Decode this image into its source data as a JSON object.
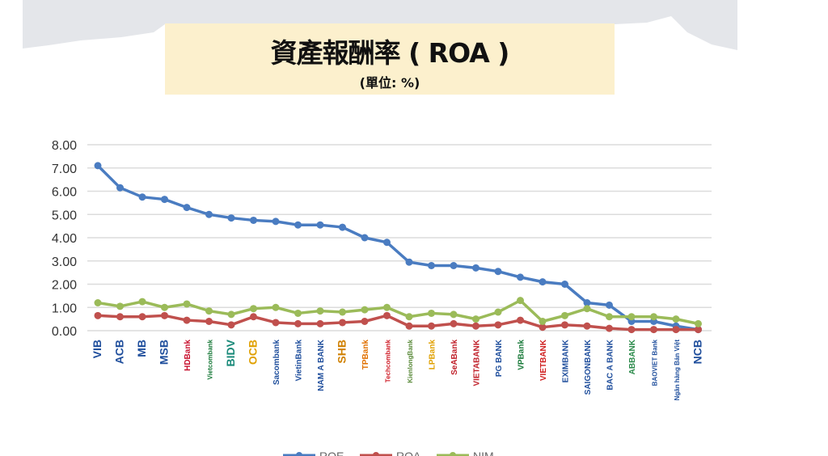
{
  "chart_data": {
    "type": "line",
    "title": "資產報酬率 ( ROA )",
    "subtitle": "(單位: %)",
    "ylim": [
      0,
      8
    ],
    "yticks": [
      "0.00",
      "1.00",
      "2.00",
      "3.00",
      "4.00",
      "5.00",
      "6.00",
      "7.00",
      "8.00"
    ],
    "grid": true,
    "legend_placement": "bottom",
    "categories": [
      "VIB",
      "ACB",
      "MB",
      "MSB",
      "HDBank",
      "Vietcombank",
      "BIDV",
      "OCB",
      "Sacombank",
      "VietinBank",
      "NAM A BANK",
      "SHB",
      "TPBank",
      "Techcombank",
      "KienlongBank",
      "LPBank",
      "SeABank",
      "VIETABANK",
      "PG BANK",
      "VPBank",
      "VIETBANK",
      "EXIMBANK",
      "SAIGONBANK",
      "BAC A BANK",
      "ABBANK",
      "BAOVIET Bank",
      "Ngân hàng Bản Việt",
      "NCB"
    ],
    "series": [
      {
        "name": "ROE",
        "color": "#4a7cc1",
        "values": [
          7.1,
          6.15,
          5.75,
          5.65,
          5.3,
          5.0,
          4.85,
          4.75,
          4.7,
          4.55,
          4.55,
          4.45,
          4.0,
          3.8,
          2.95,
          2.8,
          2.8,
          2.7,
          2.55,
          2.3,
          2.1,
          2.0,
          1.2,
          1.1,
          0.4,
          0.4,
          0.2,
          0.05
        ]
      },
      {
        "name": "ROA",
        "color": "#c0504d",
        "values": [
          0.65,
          0.6,
          0.6,
          0.65,
          0.45,
          0.4,
          0.25,
          0.6,
          0.35,
          0.3,
          0.3,
          0.35,
          0.4,
          0.65,
          0.2,
          0.2,
          0.3,
          0.2,
          0.25,
          0.45,
          0.15,
          0.25,
          0.2,
          0.1,
          0.05,
          0.05,
          0.05,
          0.05
        ]
      },
      {
        "name": "NIM",
        "color": "#9bbb59",
        "values": [
          1.2,
          1.05,
          1.25,
          1.0,
          1.15,
          0.85,
          0.7,
          0.95,
          1.0,
          0.75,
          0.85,
          0.8,
          0.9,
          1.0,
          0.6,
          0.75,
          0.7,
          0.5,
          0.8,
          1.3,
          0.4,
          0.65,
          0.95,
          0.6,
          0.6,
          0.6,
          0.5,
          0.3
        ]
      }
    ],
    "category_colors": [
      "#1f4e9c",
      "#1f4e9c",
      "#1f4e9c",
      "#1f4e9c",
      "#c8102e",
      "#1a7a3a",
      "#1a8a7a",
      "#e0a000",
      "#1f4e9c",
      "#1f4e9c",
      "#1f4e9c",
      "#d08000",
      "#e07000",
      "#d0202a",
      "#5a8a3a",
      "#e0a000",
      "#c0202a",
      "#c0202a",
      "#1f4e9c",
      "#1a7a3a",
      "#d02020",
      "#1f4e9c",
      "#1f4e9c",
      "#1f4e9c",
      "#2a8a4a",
      "#1f4e9c",
      "#1f4e9c",
      "#1f4e9c"
    ]
  }
}
